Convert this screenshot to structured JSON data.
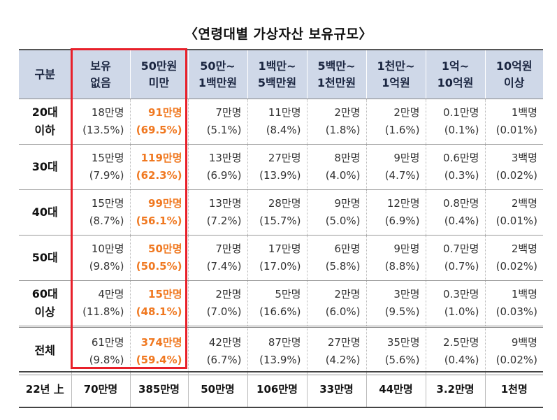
{
  "title": "〈연령대별 가상자산 보유규모〉",
  "headers": [
    [
      "구분"
    ],
    [
      "보유",
      "없음"
    ],
    [
      "50만원",
      "미만"
    ],
    [
      "50만~",
      "1백만원"
    ],
    [
      "1백만~",
      "5백만원"
    ],
    [
      "5백만~",
      "1천만원"
    ],
    [
      "1천만~",
      "1억원"
    ],
    [
      "1억~",
      "10억원"
    ],
    [
      "10억원",
      "이상"
    ]
  ],
  "rows": [
    {
      "label": [
        "20대",
        "이하"
      ],
      "cells": [
        [
          "18만명",
          "(13.5%)"
        ],
        [
          "91만명",
          "(69.5%)"
        ],
        [
          "7만명",
          "(5.1%)"
        ],
        [
          "11만명",
          "(8.4%)"
        ],
        [
          "2만명",
          "(1.8%)"
        ],
        [
          "2만명",
          "(1.6%)"
        ],
        [
          "0.1만명",
          "(0.1%)"
        ],
        [
          "1백명",
          "(0.01%)"
        ]
      ]
    },
    {
      "label": [
        "30대"
      ],
      "cells": [
        [
          "15만명",
          "(7.9%)"
        ],
        [
          "119만명",
          "(62.3%)"
        ],
        [
          "13만명",
          "(6.9%)"
        ],
        [
          "27만명",
          "(13.9%)"
        ],
        [
          "8만명",
          "(4.0%)"
        ],
        [
          "9만명",
          "(4.7%)"
        ],
        [
          "0.6만명",
          "(0.3%)"
        ],
        [
          "3백명",
          "(0.02%)"
        ]
      ]
    },
    {
      "label": [
        "40대"
      ],
      "cells": [
        [
          "15만명",
          "(8.7%)"
        ],
        [
          "99만명",
          "(56.1%)"
        ],
        [
          "13만명",
          "(7.2%)"
        ],
        [
          "28만명",
          "(15.7%)"
        ],
        [
          "9만명",
          "(5.0%)"
        ],
        [
          "12만명",
          "(6.9%)"
        ],
        [
          "0.8만명",
          "(0.4%)"
        ],
        [
          "2백명",
          "(0.01%)"
        ]
      ]
    },
    {
      "label": [
        "50대"
      ],
      "cells": [
        [
          "10만명",
          "(9.8%)"
        ],
        [
          "50만명",
          "(50.5%)"
        ],
        [
          "7만명",
          "(7.4%)"
        ],
        [
          "17만명",
          "(17.0%)"
        ],
        [
          "6만명",
          "(5.8%)"
        ],
        [
          "9만명",
          "(8.8%)"
        ],
        [
          "0.7만명",
          "(0.7%)"
        ],
        [
          "2백명",
          "(0.02%)"
        ]
      ]
    },
    {
      "label": [
        "60대",
        "이상"
      ],
      "cells": [
        [
          "4만명",
          "(11.8%)"
        ],
        [
          "15만명",
          "(48.1%)"
        ],
        [
          "2만명",
          "(7.0%)"
        ],
        [
          "5만명",
          "(16.6%)"
        ],
        [
          "2만명",
          "(6.0%)"
        ],
        [
          "3만명",
          "(9.5%)"
        ],
        [
          "0.3만명",
          "(1.0%)"
        ],
        [
          "1백명",
          "(0.03%)"
        ]
      ]
    },
    {
      "label": [
        "전체"
      ],
      "cells": [
        [
          "61만명",
          "(9.8%)"
        ],
        [
          "374만명",
          "(59.4%)"
        ],
        [
          "42만명",
          "(6.7%)"
        ],
        [
          "87만명",
          "(13.9%)"
        ],
        [
          "27만명",
          "(4.2%)"
        ],
        [
          "35만명",
          "(5.6%)"
        ],
        [
          "2.5만명",
          "(0.4%)"
        ],
        [
          "9백명",
          "(0.02%)"
        ]
      ]
    }
  ],
  "comparison": {
    "label": "22년 上",
    "values": [
      "70만명",
      "385만명",
      "50만명",
      "106만명",
      "33만명",
      "44만명",
      "3.2만명",
      "1천명"
    ]
  },
  "highlight_color": "#f07820",
  "box_color": "#e8202a",
  "header_bg": "#cfd8e8"
}
